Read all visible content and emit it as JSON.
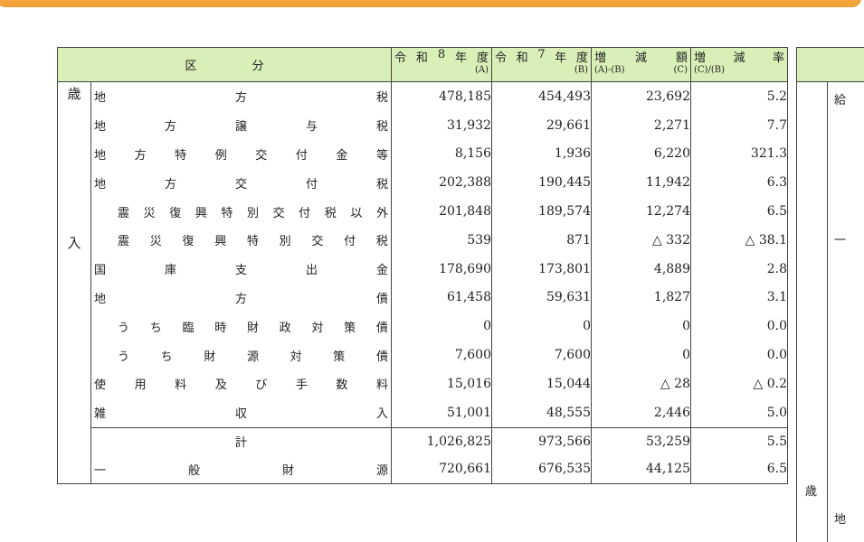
{
  "table": {
    "header": {
      "category": "区分",
      "columns": [
        {
          "title": "令和8年度",
          "note": "(A)"
        },
        {
          "title": "令和7年度",
          "note": "(B)"
        },
        {
          "title": "増減額",
          "formula": "(A)-(B)",
          "note": "(C)"
        },
        {
          "title": "増減率",
          "formula": "(C)/(B)"
        }
      ]
    },
    "section": "歳入",
    "rows": [
      {
        "label": "地方税",
        "values": [
          "478,185",
          "454,493",
          "23,692",
          "5.2"
        ]
      },
      {
        "label": "地方譲与税",
        "values": [
          "31,932",
          "29,661",
          "2,271",
          "7.7"
        ]
      },
      {
        "label": "地方特例交付金等",
        "values": [
          "8,156",
          "1,936",
          "6,220",
          "321.3"
        ]
      },
      {
        "label": "地方交付税",
        "values": [
          "202,388",
          "190,445",
          "11,942",
          "6.3"
        ],
        "sub": [
          {
            "label": "震災復興特別交付税以外",
            "values": [
              "201,848",
              "189,574",
              "12,274",
              "6.5"
            ]
          },
          {
            "label": "震災復興特別交付税",
            "values": [
              "539",
              "871",
              "△ 332",
              "△ 38.1"
            ]
          }
        ]
      },
      {
        "label": "国庫支出金",
        "values": [
          "178,690",
          "173,801",
          "4,889",
          "2.8"
        ]
      },
      {
        "label": "地方債",
        "values": [
          "61,458",
          "59,631",
          "1,827",
          "3.1"
        ],
        "sub": [
          {
            "label": "うち臨時財政対策債",
            "values": [
              "0",
              "0",
              "0",
              "0.0"
            ]
          },
          {
            "label": "うち財源対策債",
            "values": [
              "7,600",
              "7,600",
              "0",
              "0.0"
            ]
          }
        ]
      },
      {
        "label": "使用料及び手数料",
        "values": [
          "15,016",
          "15,044",
          "△ 28",
          "△ 0.2"
        ]
      },
      {
        "label": "雑収入",
        "values": [
          "51,001",
          "48,555",
          "2,446",
          "5.0"
        ]
      }
    ],
    "totals": [
      {
        "label": "計",
        "values": [
          "1,026,825",
          "973,566",
          "53,259",
          "5.5"
        ]
      },
      {
        "label": "一般財源",
        "values": [
          "720,661",
          "676,535",
          "44,125",
          "6.5"
        ]
      }
    ]
  },
  "partial_table": {
    "cells": [
      "給",
      "一",
      "歳",
      "地"
    ]
  }
}
